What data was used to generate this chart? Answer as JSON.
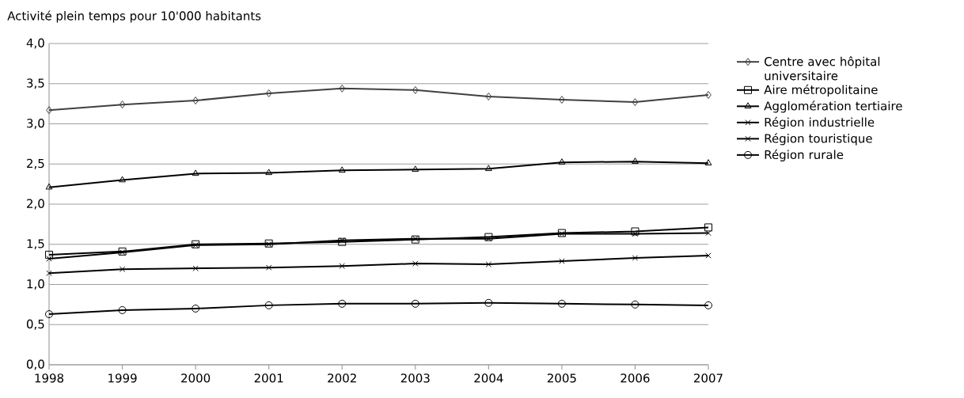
{
  "chart_data": {
    "type": "line",
    "title": "Activité plein temps pour 10'000 habitants",
    "x": [
      1998,
      1999,
      2000,
      2001,
      2002,
      2003,
      2004,
      2005,
      2006,
      2007
    ],
    "xlim": [
      1998,
      2007
    ],
    "xticks": [
      1998,
      1999,
      2000,
      2001,
      2002,
      2003,
      2004,
      2005,
      2006,
      2007
    ],
    "ylim": [
      0,
      4
    ],
    "yticks": [
      {
        "value": 0,
        "label": "0,0"
      },
      {
        "value": 0.5,
        "label": "0,5"
      },
      {
        "value": 1,
        "label": "1,0"
      },
      {
        "value": 1.5,
        "label": "1,5"
      },
      {
        "value": 2,
        "label": "2,0"
      },
      {
        "value": 2.5,
        "label": "2,5"
      },
      {
        "value": 3,
        "label": "3,0"
      },
      {
        "value": 3.5,
        "label": "3,5"
      },
      {
        "value": 4,
        "label": "4,0"
      }
    ],
    "grid": "y",
    "legend": "right",
    "line_style": "solid",
    "series": [
      {
        "name": "Centre avec hôpital universitaire",
        "color": "#404040",
        "marker": "diamond",
        "values": [
          3.17,
          3.24,
          3.29,
          3.38,
          3.44,
          3.42,
          3.34,
          3.3,
          3.27,
          3.36
        ]
      },
      {
        "name": "Aire métropolitaine",
        "color": "#000000",
        "marker": "square",
        "values": [
          1.37,
          1.41,
          1.5,
          1.51,
          1.53,
          1.56,
          1.59,
          1.64,
          1.66,
          1.71
        ]
      },
      {
        "name": "Agglomération tertiaire",
        "color": "#000000",
        "marker": "triangle",
        "values": [
          2.21,
          2.3,
          2.38,
          2.39,
          2.42,
          2.43,
          2.44,
          2.52,
          2.53,
          2.51
        ]
      },
      {
        "name": "Région industrielle",
        "color": "#000000",
        "marker": "cross",
        "values": [
          1.14,
          1.19,
          1.2,
          1.21,
          1.23,
          1.26,
          1.25,
          1.29,
          1.33,
          1.36
        ]
      },
      {
        "name": "Région touristique",
        "color": "#000000",
        "marker": "cross",
        "values": [
          1.32,
          1.4,
          1.49,
          1.5,
          1.55,
          1.57,
          1.57,
          1.63,
          1.63,
          1.64
        ]
      },
      {
        "name": "Région rurale",
        "color": "#000000",
        "marker": "circle",
        "values": [
          0.63,
          0.68,
          0.7,
          0.74,
          0.76,
          0.76,
          0.77,
          0.76,
          0.75,
          0.74
        ]
      }
    ]
  }
}
